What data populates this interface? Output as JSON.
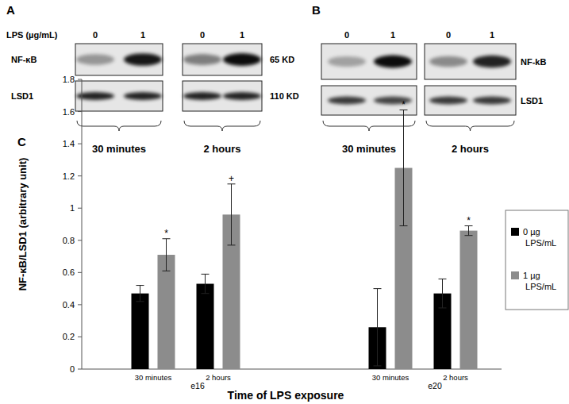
{
  "blot_panels": [
    {
      "label": "A",
      "dose_title": "LPS (µg/mL)",
      "doses": [
        0,
        1,
        0,
        1
      ],
      "rows": [
        {
          "name": "NF-κB",
          "size": "65 KD"
        },
        {
          "name": "LSD1",
          "size": "110 KD"
        }
      ],
      "times": [
        "30 minutes",
        "2 hours"
      ]
    },
    {
      "label": "B",
      "doses": [
        0,
        1,
        0,
        1
      ],
      "rows": [
        {
          "name": "NF-kB"
        },
        {
          "name": "LSD1"
        }
      ],
      "times": [
        "30 minutes",
        "2 hours"
      ]
    }
  ],
  "chart_panel_label": "C",
  "chart_data": {
    "type": "bar",
    "xlabel": "Time of LPS exposure",
    "ylabel": "NF-κB/LSD1 (arbitrary unit)",
    "categories": [
      "30 minutes",
      "2 hours",
      "30 minutes",
      "2 hours"
    ],
    "groups": [
      "e16",
      "e20"
    ],
    "series": [
      {
        "name": "0 µg LPS/mL",
        "color": "#000000",
        "values": [
          0.47,
          0.53,
          0.26,
          0.47
        ],
        "errors": [
          0.05,
          0.06,
          0.24,
          0.09
        ]
      },
      {
        "name": "1 µg LPS/mL",
        "color": "#8c8c8c",
        "values": [
          0.71,
          0.96,
          1.25,
          0.86
        ],
        "errors": [
          0.1,
          0.19,
          0.36,
          0.03
        ],
        "significance": [
          "*",
          "+",
          "*",
          "*"
        ]
      }
    ],
    "ylim": [
      0,
      1.8
    ],
    "yticks": [
      0,
      0.2,
      0.4,
      0.6,
      0.8,
      1,
      1.2,
      1.4,
      1.6,
      1.8
    ],
    "grid": false,
    "legend": "right"
  }
}
